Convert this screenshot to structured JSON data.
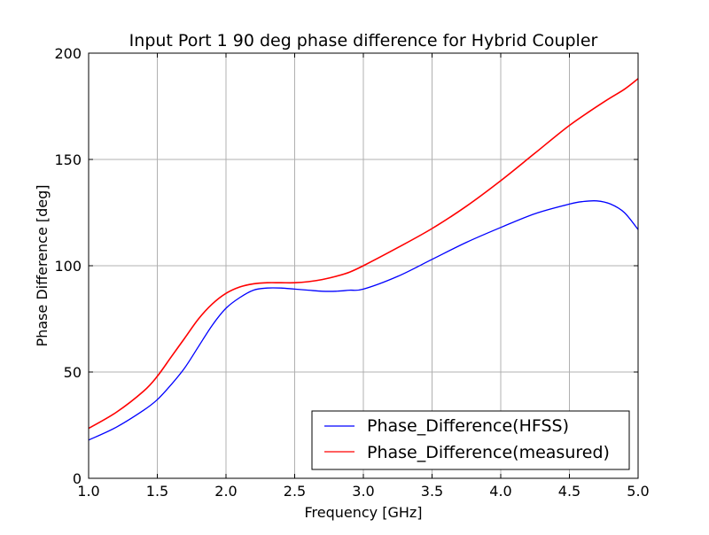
{
  "chart_data": {
    "type": "line",
    "title": "Input Port 1 90 deg phase difference for Hybrid Coupler",
    "xlabel": "Frequency [GHz]",
    "ylabel": "Phase Difference [deg]",
    "xlim": [
      1.0,
      5.0
    ],
    "ylim": [
      0,
      200
    ],
    "x_ticks": [
      "1.0",
      "1.5",
      "2.0",
      "2.5",
      "3.0",
      "3.5",
      "4.0",
      "4.5",
      "5.0"
    ],
    "y_ticks": [
      "0",
      "50",
      "100",
      "150",
      "200"
    ],
    "grid": true,
    "legend_position": "lower-right",
    "series": [
      {
        "name": "Phase_Difference(HFSS)",
        "color": "#0000ff",
        "x": [
          1.0,
          1.2,
          1.4,
          1.5,
          1.6,
          1.7,
          1.8,
          1.9,
          2.0,
          2.1,
          2.2,
          2.3,
          2.4,
          2.5,
          2.6,
          2.7,
          2.8,
          2.9,
          3.0,
          3.25,
          3.5,
          3.75,
          4.0,
          4.25,
          4.5,
          4.6,
          4.7,
          4.8,
          4.9,
          5.0
        ],
        "y": [
          18,
          24,
          32,
          37,
          44,
          52,
          62,
          72,
          80,
          85,
          88.5,
          89.5,
          89.5,
          89,
          88.5,
          88,
          88,
          88.5,
          89,
          95,
          103,
          111,
          118,
          124.5,
          129,
          130.2,
          130.5,
          129,
          125,
          117
        ]
      },
      {
        "name": "Phase_Difference(measured)",
        "color": "#ff0000",
        "x": [
          1.0,
          1.2,
          1.4,
          1.5,
          1.6,
          1.7,
          1.8,
          1.9,
          2.0,
          2.1,
          2.2,
          2.3,
          2.4,
          2.5,
          2.6,
          2.7,
          2.8,
          2.9,
          3.0,
          3.25,
          3.5,
          3.75,
          4.0,
          4.25,
          4.5,
          4.75,
          4.9,
          5.0
        ],
        "y": [
          23.5,
          31,
          41,
          48,
          57,
          66,
          75,
          82,
          87,
          90,
          91.5,
          92,
          92,
          92,
          92.5,
          93.5,
          95,
          97,
          100,
          108.5,
          117.5,
          128,
          140,
          153,
          166,
          177,
          183,
          188
        ]
      }
    ]
  }
}
